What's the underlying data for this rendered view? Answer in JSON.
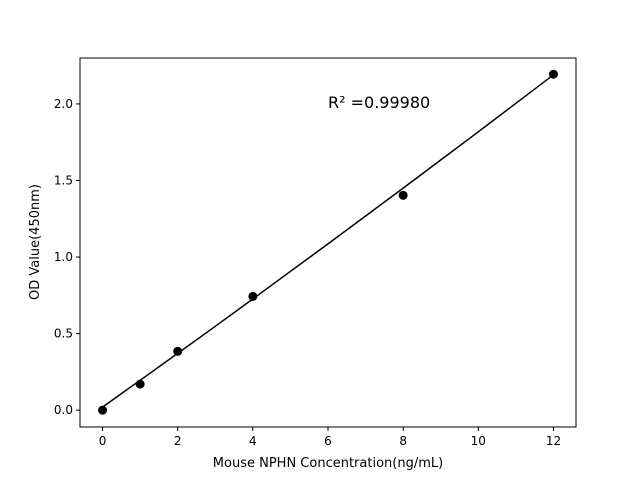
{
  "chart_data": {
    "type": "scatter",
    "title": "",
    "xlabel": "Mouse NPHN Concentration(ng/mL)",
    "ylabel": "OD Value(450nm)",
    "xlim": [
      -0.6,
      12.6
    ],
    "ylim": [
      -0.11,
      2.3
    ],
    "xticks": [
      0,
      2,
      4,
      6,
      8,
      10,
      12
    ],
    "xtick_labels": [
      "0",
      "2",
      "4",
      "6",
      "8",
      "10",
      "12"
    ],
    "yticks": [
      0.0,
      0.5,
      1.0,
      1.5,
      2.0
    ],
    "ytick_labels": [
      "0.0",
      "0.5",
      "1.0",
      "1.5",
      "2.0"
    ],
    "grid": false,
    "points": {
      "x": [
        0,
        1,
        2,
        4,
        8,
        12
      ],
      "y": [
        0.0,
        0.17,
        0.384,
        0.743,
        1.403,
        2.194
      ]
    },
    "fit_line": {
      "x": [
        0,
        1,
        2,
        3,
        4,
        5,
        6,
        7,
        8,
        9,
        10,
        11,
        12
      ],
      "y": [
        0.02,
        0.195,
        0.371,
        0.548,
        0.726,
        0.906,
        1.086,
        1.268,
        1.45,
        1.634,
        1.818,
        2.004,
        2.19
      ]
    },
    "annotation": "R² =0.99980",
    "colors": {
      "points": "#000000",
      "line": "#000000"
    }
  }
}
